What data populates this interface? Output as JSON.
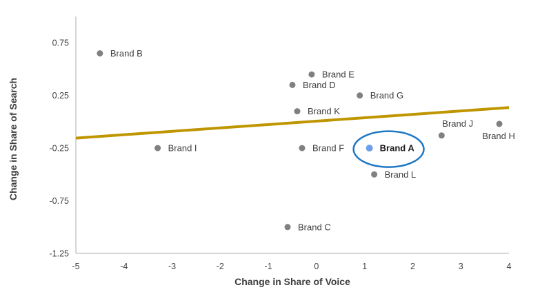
{
  "chart_data": {
    "type": "scatter",
    "title": "",
    "xlabel": "Change in Share of Voice",
    "ylabel": "Change in Share of Search",
    "xlim": [
      -5,
      4
    ],
    "ylim": [
      -1.25,
      1.0
    ],
    "xticks": [
      -5,
      -4,
      -3,
      -2,
      -1,
      0,
      1,
      2,
      3,
      4
    ],
    "yticks": [
      0.75,
      0.25,
      -0.25,
      -0.75,
      -1.25
    ],
    "grid": false,
    "legend": "none",
    "points": [
      {
        "name": "Brand A",
        "x": 1.1,
        "y": -0.25,
        "color": "#6D9EEB",
        "label_position": "right",
        "emphasis": true
      },
      {
        "name": "Brand B",
        "x": -4.5,
        "y": 0.65,
        "color": "#808080",
        "label_position": "right"
      },
      {
        "name": "Brand C",
        "x": -0.6,
        "y": -1.0,
        "color": "#808080",
        "label_position": "right"
      },
      {
        "name": "Brand D",
        "x": -0.5,
        "y": 0.35,
        "color": "#808080",
        "label_position": "right"
      },
      {
        "name": "Brand E",
        "x": -0.1,
        "y": 0.45,
        "color": "#808080",
        "label_position": "right"
      },
      {
        "name": "Brand F",
        "x": -0.3,
        "y": -0.25,
        "color": "#808080",
        "label_position": "right"
      },
      {
        "name": "Brand G",
        "x": 0.9,
        "y": 0.25,
        "color": "#808080",
        "label_position": "right"
      },
      {
        "name": "Brand H",
        "x": 3.8,
        "y": -0.02,
        "color": "#808080",
        "label_position": "below"
      },
      {
        "name": "Brand I",
        "x": -3.3,
        "y": -0.25,
        "color": "#808080",
        "label_position": "right"
      },
      {
        "name": "Brand J",
        "x": 2.6,
        "y": -0.13,
        "color": "#808080",
        "label_position": "above"
      },
      {
        "name": "Brand K",
        "x": -0.4,
        "y": 0.1,
        "color": "#808080",
        "label_position": "right"
      },
      {
        "name": "Brand L",
        "x": 1.2,
        "y": -0.5,
        "color": "#808080",
        "label_position": "right"
      }
    ],
    "trendline": {
      "x1": -5,
      "y1": -0.155,
      "x2": 4,
      "y2": 0.135,
      "color": "#BF9600",
      "width": 4
    },
    "annotation_ellipse": {
      "cx": 1.5,
      "cy": -0.26,
      "rx": 0.73,
      "ry": 0.17,
      "color": "#1E78C4",
      "stroke_width": 2.5
    },
    "colors": {
      "default_point": "#808080",
      "highlight_point": "#6D9EEB",
      "axis_line": "#BFBFBF",
      "tick_text": "#404040",
      "label_text": "#3d3d3d",
      "emphasis_label_text": "#1a1a1a"
    }
  }
}
